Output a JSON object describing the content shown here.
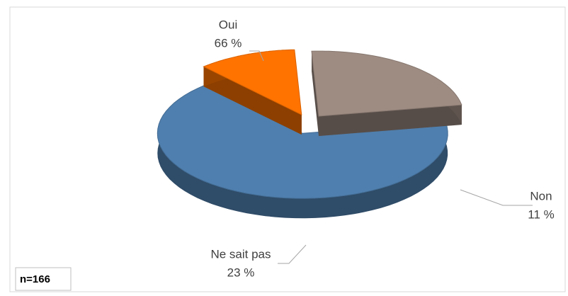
{
  "chart_data": {
    "type": "pie",
    "categories": [
      "Oui",
      "Non",
      "Ne sait pas"
    ],
    "values": [
      66,
      11,
      23
    ],
    "value_labels": [
      "66 %",
      "11 %",
      "23 %"
    ],
    "colors": [
      "#4f7fae",
      "#ff7300",
      "#9e8c82"
    ],
    "annotation": "n=166"
  }
}
